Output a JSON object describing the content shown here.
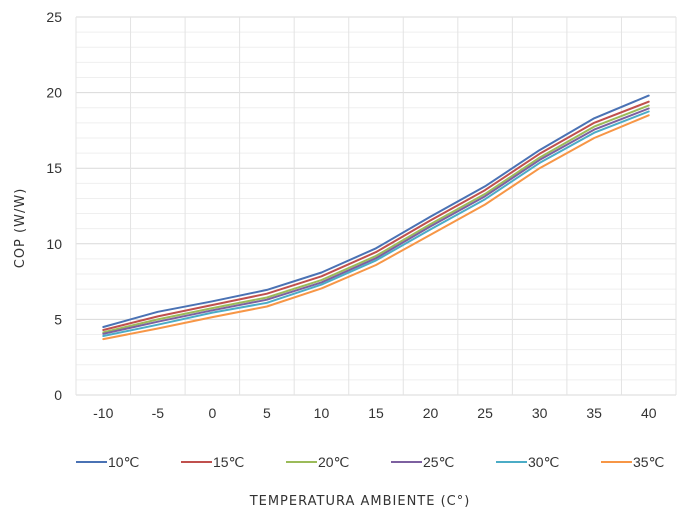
{
  "chart_data": {
    "type": "line",
    "title": "",
    "xlabel": "TEMPERATURA AMBIENTE (C°)",
    "ylabel": "COP (W/W)",
    "categories": [
      "-10",
      "-5",
      "0",
      "5",
      "10",
      "15",
      "20",
      "25",
      "30",
      "35",
      "40"
    ],
    "ylim": [
      0,
      25
    ],
    "yticks": [
      "0",
      "5",
      "10",
      "15",
      "20",
      "25"
    ],
    "grid": true,
    "legend_position": "bottom",
    "series": [
      {
        "name": "10℃",
        "color": "#4a72b4",
        "values": [
          4.5,
          5.5,
          6.2,
          6.95,
          8.1,
          9.7,
          11.8,
          13.8,
          16.2,
          18.3,
          19.8
        ]
      },
      {
        "name": "15℃",
        "color": "#c0504d",
        "values": [
          4.3,
          5.2,
          5.95,
          6.7,
          7.85,
          9.45,
          11.55,
          13.55,
          15.95,
          18.0,
          19.4
        ]
      },
      {
        "name": "20℃",
        "color": "#9bbb59",
        "values": [
          4.15,
          5.0,
          5.75,
          6.45,
          7.6,
          9.2,
          11.3,
          13.3,
          15.7,
          17.75,
          19.15
        ]
      },
      {
        "name": "25℃",
        "color": "#7d60a0",
        "values": [
          4.05,
          4.85,
          5.6,
          6.3,
          7.45,
          9.05,
          11.15,
          13.15,
          15.55,
          17.55,
          18.95
        ]
      },
      {
        "name": "30℃",
        "color": "#4bacc6",
        "values": [
          3.9,
          4.65,
          5.45,
          6.1,
          7.3,
          8.9,
          10.95,
          12.95,
          15.35,
          17.35,
          18.75
        ]
      },
      {
        "name": "35℃",
        "color": "#f79646",
        "values": [
          3.7,
          4.4,
          5.15,
          5.85,
          7.05,
          8.6,
          10.6,
          12.6,
          15.0,
          17.0,
          18.5
        ]
      }
    ]
  }
}
